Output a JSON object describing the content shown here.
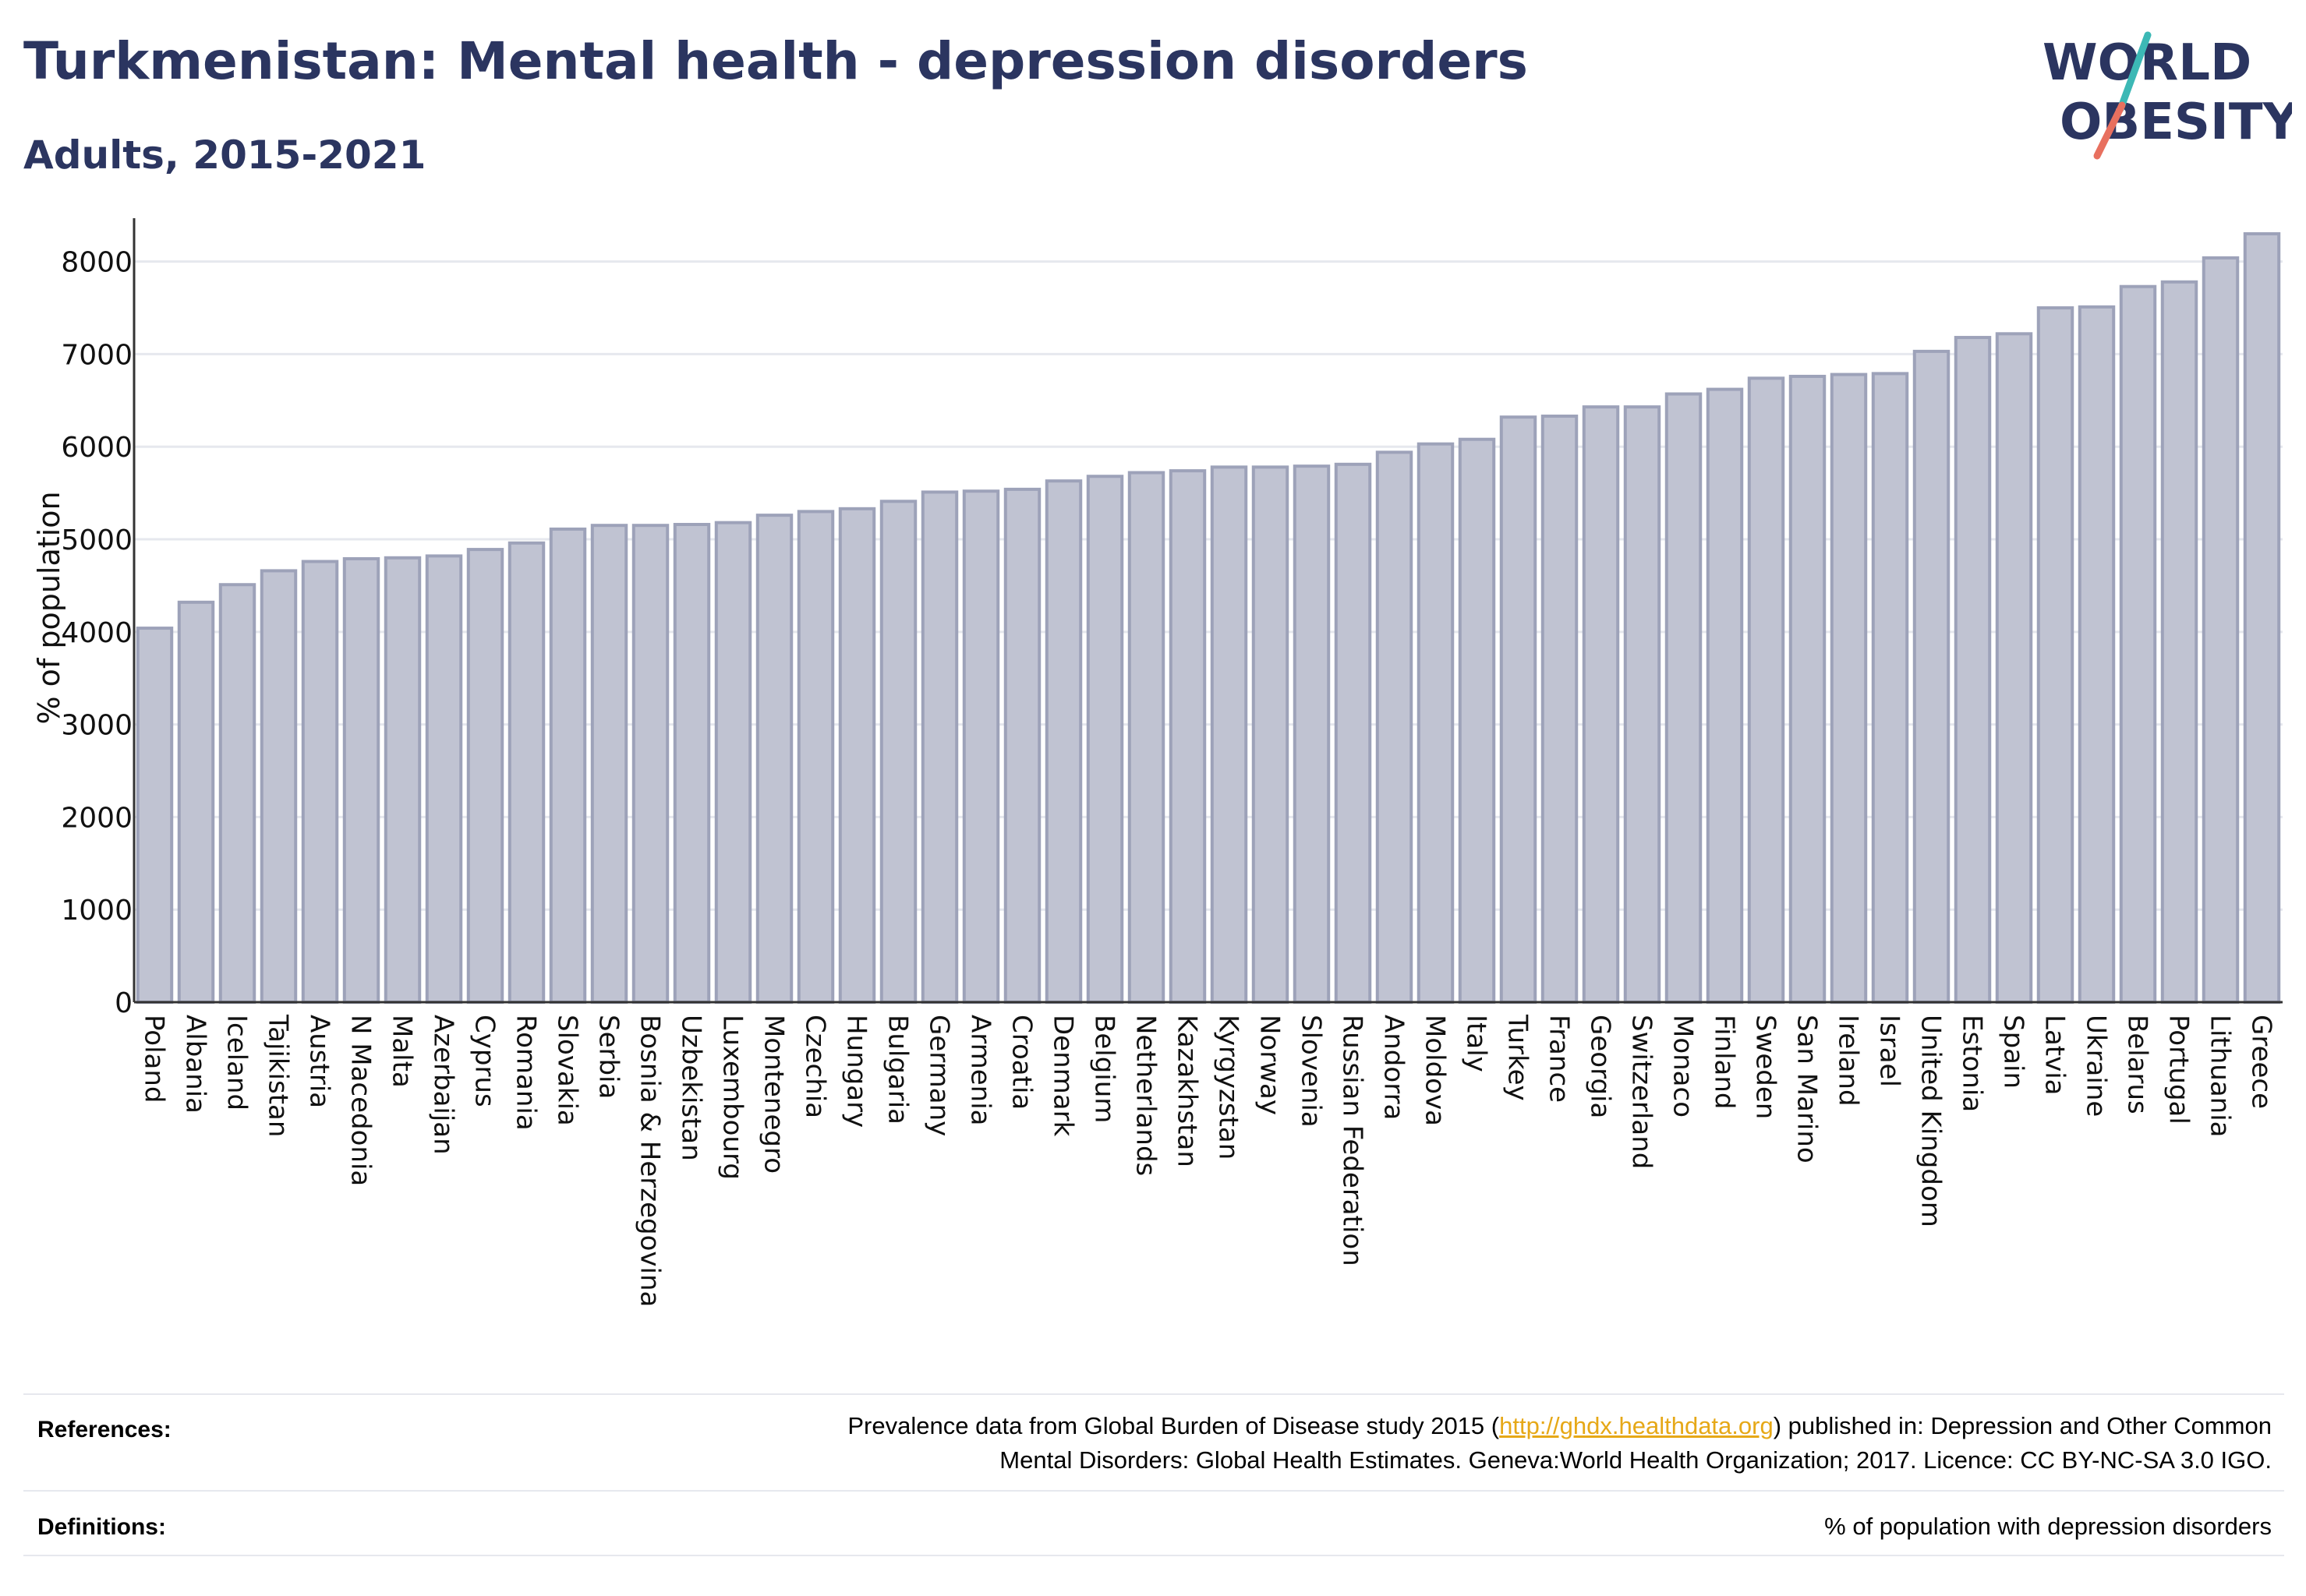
{
  "header": {
    "title": "Turkmenistan: Mental health - depression disorders",
    "subtitle": "Adults, 2015-2021"
  },
  "logo": {
    "line1": "WORLD",
    "line2": "OBESITY",
    "colors": {
      "text": "#2b3560",
      "slash_teal": "#3cb8b5",
      "slash_coral": "#e8705f"
    }
  },
  "chart_data": {
    "type": "bar",
    "title": "",
    "xlabel": "",
    "ylabel": "% of population",
    "ylim": [
      0,
      8300
    ],
    "yticks": [
      0,
      1000,
      2000,
      3000,
      4000,
      5000,
      6000,
      7000,
      8000
    ],
    "grid": true,
    "categories": [
      "Poland",
      "Albania",
      "Iceland",
      "Tajikistan",
      "Austria",
      "N Macedonia",
      "Malta",
      "Azerbaijan",
      "Cyprus",
      "Romania",
      "Slovakia",
      "Serbia",
      "Bosnia & Herzegovina",
      "Uzbekistan",
      "Luxembourg",
      "Montenegro",
      "Czechia",
      "Hungary",
      "Bulgaria",
      "Germany",
      "Armenia",
      "Croatia",
      "Denmark",
      "Belgium",
      "Netherlands",
      "Kazakhstan",
      "Kyrgyzstan",
      "Norway",
      "Slovenia",
      "Russian Federation",
      "Andorra",
      "Moldova",
      "Italy",
      "Turkey",
      "France",
      "Georgia",
      "Switzerland",
      "Monaco",
      "Finland",
      "Sweden",
      "San Marino",
      "Ireland",
      "Israel",
      "United Kingdom",
      "Estonia",
      "Spain",
      "Latvia",
      "Ukraine",
      "Belarus",
      "Portugal",
      "Lithuania",
      "Greece"
    ],
    "values": [
      4040,
      4320,
      4510,
      4660,
      4760,
      4790,
      4800,
      4820,
      4890,
      4960,
      5110,
      5150,
      5150,
      5160,
      5180,
      5260,
      5300,
      5330,
      5410,
      5510,
      5520,
      5540,
      5630,
      5680,
      5720,
      5740,
      5780,
      5780,
      5790,
      5810,
      5940,
      6030,
      6080,
      6320,
      6330,
      6430,
      6430,
      6570,
      6620,
      6740,
      6760,
      6780,
      6790,
      7030,
      7180,
      7220,
      7500,
      7510,
      7730,
      7780,
      8040,
      8300
    ],
    "colors": {
      "bar_fill": "#c0c3d2",
      "bar_stroke": "#9da2b9",
      "grid": "#e6e8ee",
      "axis": "#333333"
    }
  },
  "footer": {
    "references_label": "References:",
    "references_line1_pre": "Prevalence data from Global Burden of Disease study 2015 (",
    "references_link": "http://ghdx.healthdata.org",
    "references_line1_post": ") published in: Depression and Other Common",
    "references_line2": "Mental Disorders: Global Health Estimates. Geneva:World Health Organization; 2017. Licence: CC BY-NC-SA 3.0 IGO.",
    "definitions_label": "Definitions:",
    "definitions_text": "% of population with depression disorders"
  }
}
